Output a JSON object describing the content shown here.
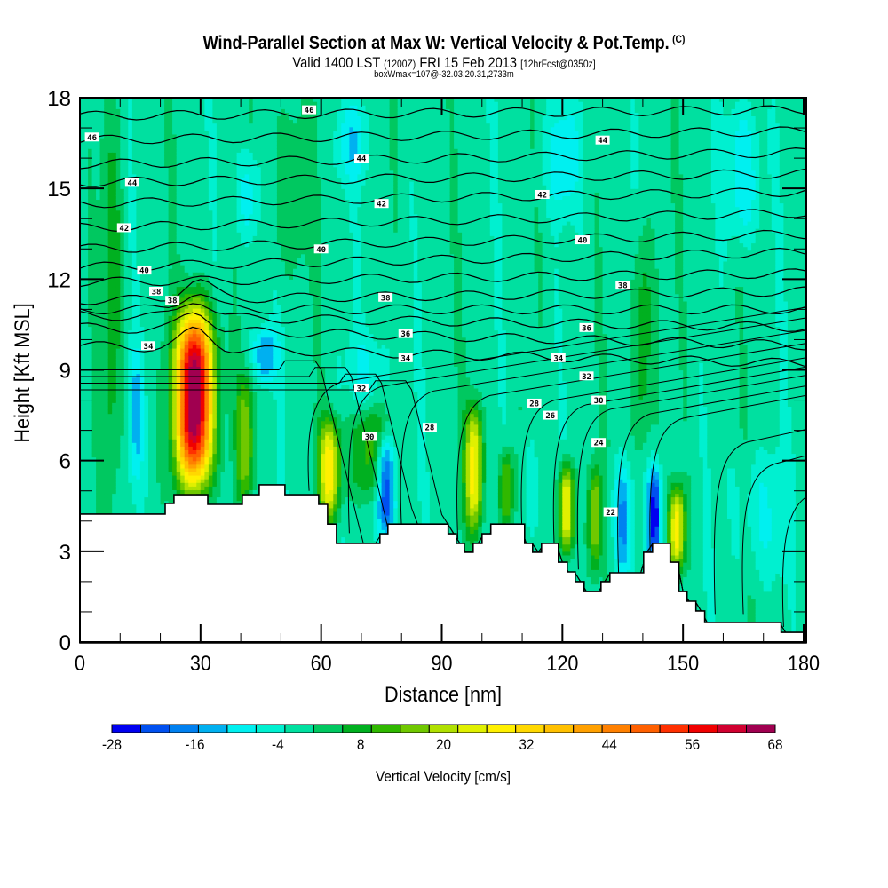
{
  "header": {
    "title": "Wind-Parallel Section at Max W: Vertical Velocity & Pot.Temp.",
    "copyright": "(C)",
    "valid_prefix": "Valid 1400 LST",
    "valid_utc": "(1200Z)",
    "valid_date": "FRI 15 Feb 2013",
    "forecast": "[12hrFcst@0350z]",
    "boxwmax": "boxWmax=107@-32.03,20.31,2733m"
  },
  "chart_data": {
    "type": "heatmap",
    "title": "Wind-Parallel Section at Max W: Vertical Velocity & Pot.Temp.",
    "xlabel": "Distance [nm]",
    "ylabel": "Height [Kft MSL]",
    "xlim": [
      0,
      184
    ],
    "ylim": [
      0,
      18
    ],
    "xticks": [
      0,
      30,
      60,
      90,
      120,
      150,
      180
    ],
    "xtick_labels": [
      "0",
      "30",
      "60",
      "90",
      "120",
      "150",
      "180"
    ],
    "yticks": [
      0,
      3,
      6,
      9,
      12,
      15,
      18
    ],
    "ytick_labels": [
      "0",
      "3",
      "6",
      "9",
      "12",
      "15",
      "18"
    ],
    "x_minor_step": 10,
    "y_minor_step": 1,
    "background_value": -2,
    "colorbar": {
      "title": "Vertical Velocity [cm/s]",
      "min": -28,
      "max": 68,
      "step": 4,
      "tick_labels": [
        "-28",
        "-16",
        "-4",
        "8",
        "20",
        "32",
        "44",
        "56",
        "68"
      ],
      "colors": [
        "#0000f0",
        "#0050f0",
        "#0080f0",
        "#00b0f0",
        "#00f0f0",
        "#00f0d0",
        "#00e0a0",
        "#00c860",
        "#00b020",
        "#30b800",
        "#70c800",
        "#b0e000",
        "#e0f000",
        "#fff000",
        "#ffd800",
        "#ffc000",
        "#ffa000",
        "#ff8000",
        "#ff6000",
        "#ff3000",
        "#f00000",
        "#d00030",
        "#a00050"
      ]
    },
    "wmax_features": [
      {
        "x": 28.5,
        "y_bottom": 5.0,
        "y_top": 11.2,
        "half_width": 5.0,
        "peak": 68
      },
      {
        "x": 41,
        "y_bottom": 4.5,
        "y_top": 9.0,
        "half_width": 2.5,
        "peak": 14
      },
      {
        "x": 62,
        "y_bottom": 3.9,
        "y_top": 7.5,
        "half_width": 3.0,
        "peak": 26
      },
      {
        "x": 98,
        "y_bottom": 3.5,
        "y_top": 8.0,
        "half_width": 2.5,
        "peak": 26
      },
      {
        "x": 106,
        "y_bottom": 3.6,
        "y_top": 6.5,
        "half_width": 2.0,
        "peak": 14
      },
      {
        "x": 121,
        "y_bottom": 2.8,
        "y_top": 6.0,
        "half_width": 2.0,
        "peak": 28
      },
      {
        "x": 128,
        "y_bottom": 2.3,
        "y_top": 6.0,
        "half_width": 1.8,
        "peak": 16
      },
      {
        "x": 148.5,
        "y_bottom": 2.3,
        "y_top": 5.2,
        "half_width": 2.2,
        "peak": 26
      },
      {
        "x": 8,
        "y_bottom": 4.3,
        "y_top": 18,
        "half_width": 3.0,
        "peak": 6
      },
      {
        "x": 52,
        "y_bottom": 12,
        "y_top": 18,
        "half_width": 6.0,
        "peak": 4
      },
      {
        "x": 140,
        "y_bottom": 6,
        "y_top": 14,
        "half_width": 3.0,
        "peak": 8
      },
      {
        "x": 72,
        "y_bottom": 4.5,
        "y_top": 8.0,
        "half_width": 6.0,
        "peak": 10
      }
    ],
    "wmin_features": [
      {
        "x": 76,
        "y_bottom": 3.3,
        "y_top": 7.0,
        "half_width": 2.5,
        "peak": -28
      },
      {
        "x": 72,
        "y_bottom": 7.5,
        "y_top": 10.5,
        "half_width": 6.0,
        "peak": -8
      },
      {
        "x": 46,
        "y_bottom": 8.5,
        "y_top": 10.5,
        "half_width": 3.5,
        "peak": -16
      },
      {
        "x": 143,
        "y_bottom": 2.4,
        "y_top": 6.0,
        "half_width": 2.0,
        "peak": -26
      },
      {
        "x": 135,
        "y_bottom": 2.0,
        "y_top": 6.0,
        "half_width": 2.5,
        "peak": -16
      },
      {
        "x": 112,
        "y_bottom": 3.0,
        "y_top": 7.0,
        "half_width": 2.0,
        "peak": -8
      },
      {
        "x": 170,
        "y_bottom": 2.0,
        "y_top": 6.5,
        "half_width": 8.0,
        "peak": -8
      },
      {
        "x": 14,
        "y_bottom": 5.0,
        "y_top": 10.0,
        "half_width": 2.0,
        "peak": -12
      },
      {
        "x": 68,
        "y_bottom": 15,
        "y_top": 18,
        "half_width": 5.0,
        "peak": -10
      },
      {
        "x": 120,
        "y_bottom": 14,
        "y_top": 18,
        "half_width": 5.0,
        "peak": -10
      },
      {
        "x": 165,
        "y_bottom": 13,
        "y_top": 18,
        "half_width": 5.0,
        "peak": -12
      },
      {
        "x": 42,
        "y_bottom": 13,
        "y_top": 16.5,
        "half_width": 4.0,
        "peak": -10
      }
    ],
    "terrain": {
      "x": [
        0,
        21.2,
        21.2,
        23.4,
        23.4,
        31.8,
        31.8,
        40.4,
        40.4,
        44.6,
        44.6,
        51.0,
        51.0,
        59.4,
        59.4,
        61.6,
        61.6,
        63.8,
        63.8,
        74.6,
        74.6,
        76.6,
        76.6,
        91.6,
        91.6,
        93.6,
        93.6,
        95.6,
        95.6,
        97.8,
        97.8,
        100.0,
        100.0,
        102.2,
        102.2,
        110.6,
        110.6,
        112.6,
        112.6,
        114.8,
        114.8,
        119.0,
        119.0,
        121.2,
        121.2,
        123.2,
        123.2,
        125.4,
        125.4,
        129.6,
        129.6,
        131.8,
        131.8,
        140.2,
        140.2,
        142.4,
        142.4,
        146.8,
        146.8,
        149.0,
        149.0,
        151.0,
        151.0,
        153.2,
        153.2,
        155.4,
        155.4,
        174.4,
        174.4,
        184
      ],
      "y": [
        4.23,
        4.23,
        4.58,
        4.58,
        4.87,
        4.87,
        4.55,
        4.55,
        4.87,
        4.87,
        5.2,
        5.2,
        4.87,
        4.87,
        4.55,
        4.55,
        3.9,
        3.9,
        3.26,
        3.26,
        3.58,
        3.58,
        3.9,
        3.9,
        3.58,
        3.58,
        3.26,
        3.26,
        2.97,
        2.97,
        3.26,
        3.26,
        3.58,
        3.58,
        3.9,
        3.9,
        3.26,
        3.26,
        2.97,
        2.97,
        3.26,
        3.26,
        2.64,
        2.64,
        2.32,
        2.32,
        2.0,
        2.0,
        1.67,
        1.67,
        2.0,
        2.0,
        2.29,
        2.29,
        2.97,
        2.97,
        3.26,
        3.26,
        2.64,
        2.64,
        1.67,
        1.67,
        1.35,
        1.35,
        1.03,
        1.03,
        0.65,
        0.65,
        0.32,
        0.32
      ]
    },
    "theta_contours": {
      "field": "Potential Temperature",
      "levels_upper": [
        34,
        35,
        36,
        37,
        38,
        39,
        40,
        41,
        42,
        43,
        44,
        45,
        46,
        47
      ],
      "upper_left_height": [
        9.8,
        10.4,
        10.8,
        11.0,
        11.3,
        11.9,
        12.4,
        13.0,
        13.7,
        14.5,
        15.2,
        15.8,
        16.6,
        17.4
      ],
      "upper_right_height": [
        9.2,
        9.8,
        10.4,
        11.0,
        11.6,
        12.2,
        12.9,
        13.5,
        14.2,
        14.9,
        15.5,
        16.2,
        16.9,
        17.6
      ],
      "labels": [
        {
          "text": "46",
          "x": 3,
          "y": 16.7
        },
        {
          "text": "44",
          "x": 13,
          "y": 15.2
        },
        {
          "text": "42",
          "x": 11,
          "y": 13.7
        },
        {
          "text": "40",
          "x": 16,
          "y": 12.3
        },
        {
          "text": "38",
          "x": 19,
          "y": 11.6
        },
        {
          "text": "38",
          "x": 23,
          "y": 11.3
        },
        {
          "text": "34",
          "x": 17,
          "y": 9.8
        },
        {
          "text": "46",
          "x": 57,
          "y": 17.6
        },
        {
          "text": "44",
          "x": 70,
          "y": 16.0
        },
        {
          "text": "42",
          "x": 75,
          "y": 14.5
        },
        {
          "text": "40",
          "x": 60,
          "y": 13.0
        },
        {
          "text": "38",
          "x": 76,
          "y": 11.4
        },
        {
          "text": "36",
          "x": 81,
          "y": 10.2
        },
        {
          "text": "34",
          "x": 81,
          "y": 9.4
        },
        {
          "text": "32",
          "x": 70,
          "y": 8.4
        },
        {
          "text": "30",
          "x": 72,
          "y": 6.8
        },
        {
          "text": "28",
          "x": 87,
          "y": 7.1
        },
        {
          "text": "44",
          "x": 130,
          "y": 16.6
        },
        {
          "text": "42",
          "x": 115,
          "y": 14.8
        },
        {
          "text": "40",
          "x": 125,
          "y": 13.3
        },
        {
          "text": "38",
          "x": 135,
          "y": 11.8
        },
        {
          "text": "36",
          "x": 126,
          "y": 10.4
        },
        {
          "text": "34",
          "x": 119,
          "y": 9.4
        },
        {
          "text": "32",
          "x": 126,
          "y": 8.8
        },
        {
          "text": "30",
          "x": 129,
          "y": 8.0
        },
        {
          "text": "28",
          "x": 113,
          "y": 7.9
        },
        {
          "text": "26",
          "x": 117,
          "y": 7.5
        },
        {
          "text": "24",
          "x": 129,
          "y": 6.6
        },
        {
          "text": "22",
          "x": 132,
          "y": 4.3
        }
      ]
    }
  }
}
